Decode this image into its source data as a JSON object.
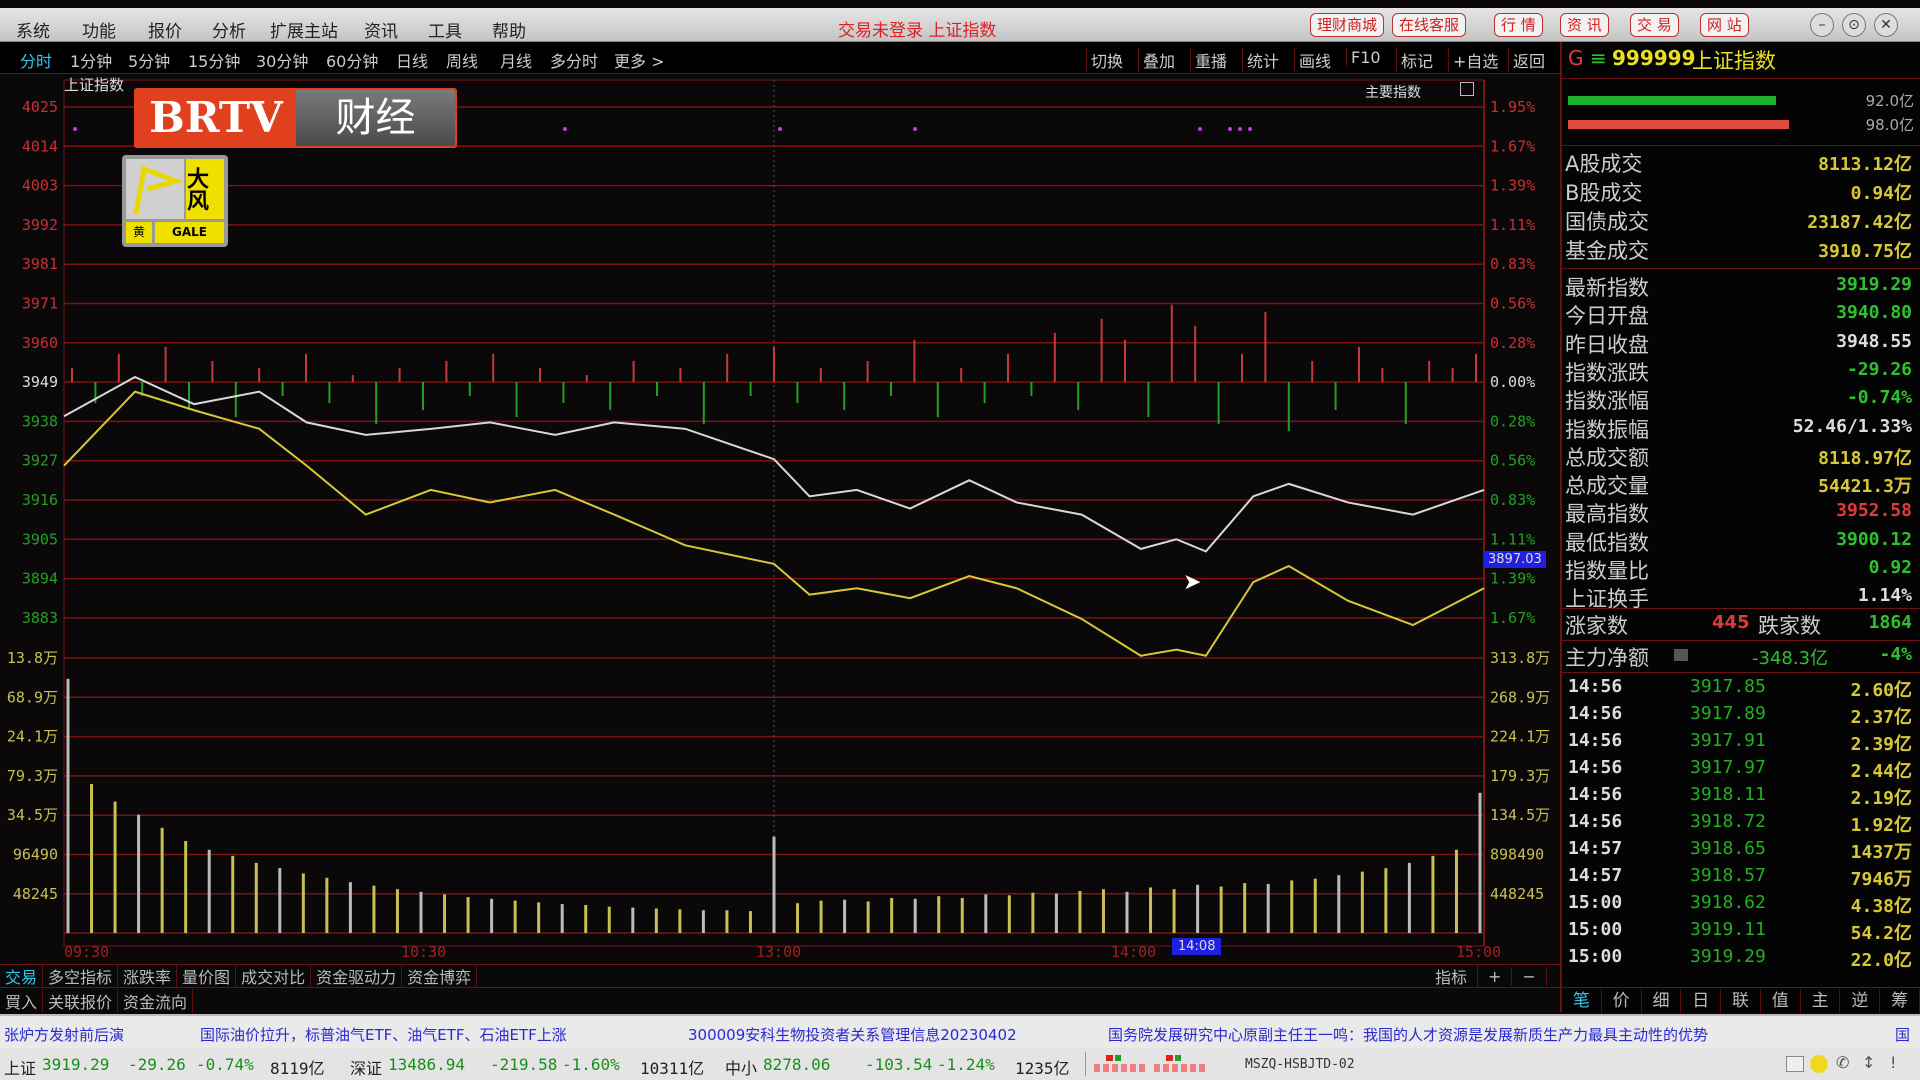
{
  "menu": [
    "系统",
    "功能",
    "报价",
    "分析",
    "扩展主站",
    "资讯",
    "工具",
    "帮助"
  ],
  "window_title": "交易未登录 上证指数",
  "title_buttons": [
    "理财商城",
    "在线客服",
    "行 情",
    "资 讯",
    "交 易",
    "网 站"
  ],
  "window_controls": [
    "–",
    "⊙",
    "✕"
  ],
  "periods": [
    "分时",
    "1分钟",
    "5分钟",
    "15分钟",
    "30分钟",
    "60分钟",
    "日线",
    "周线",
    "月线",
    "多分时",
    "更多 >"
  ],
  "tools": [
    "切换",
    "叠加",
    "重播",
    "统计",
    "画线",
    "F10",
    "标记",
    "+自选",
    "返回"
  ],
  "chart": {
    "index_label": "上证指数",
    "main_index_label": "主要指数",
    "logo": {
      "brand": "BRTV",
      "channel": "财经"
    },
    "warning": {
      "title": "大风",
      "level": "黄",
      "en": "GALE"
    },
    "cursor_price": "3897.03",
    "cursor_time": "14:08",
    "colors": {
      "grid": "#7a1414",
      "up": "#e03a3a",
      "down": "#22b022",
      "index": "#d8d8d8",
      "avg": "#d8c838",
      "vol": "#c8c050"
    }
  },
  "chart_data": {
    "type": "line",
    "price_ticks": [
      "4025",
      "4014",
      "4003",
      "3992",
      "3981",
      "3971",
      "3960",
      "3949",
      "3938",
      "3927",
      "3916",
      "3905",
      "3894",
      "3883"
    ],
    "pct_ticks": [
      "1.95%",
      "1.67%",
      "1.39%",
      "1.11%",
      "0.83%",
      "0.56%",
      "0.28%",
      "0.00%",
      "0.28%",
      "0.56%",
      "0.83%",
      "1.11%",
      "1.39%",
      "1.67%"
    ],
    "vol_ticks_left": [
      "13.8万",
      "68.9万",
      "24.1万",
      "79.3万",
      "34.5万",
      "96490",
      "48245"
    ],
    "vol_ticks_right": [
      "313.8万",
      "268.9万",
      "224.1万",
      "179.3万",
      "134.5万",
      "898490",
      "448245"
    ],
    "time_ticks": [
      "09:30",
      "10:30",
      "13:00",
      "14:00",
      "15:00"
    ],
    "prev_close": 3949,
    "x": [
      "09:30",
      "09:42",
      "09:52",
      "10:03",
      "10:11",
      "10:21",
      "10:32",
      "10:42",
      "10:53",
      "11:03",
      "11:15",
      "11:30",
      "13:06",
      "13:14",
      "13:23",
      "13:33",
      "13:41",
      "13:52",
      "14:02",
      "14:08",
      "14:13",
      "14:21",
      "14:27",
      "14:37",
      "14:48",
      "15:00"
    ],
    "series": [
      {
        "values": [
          3939.4,
          3950.4,
          3942.8,
          3946.3,
          3937.7,
          3934.2,
          3935.9,
          3937.7,
          3934.2,
          3937.7,
          3935.9,
          3927.4,
          3917.0,
          3918.8,
          3913.6,
          3921.5,
          3915.3,
          3911.9,
          3902.3,
          3905.0,
          3901.6,
          3917.0,
          3920.5,
          3915.3,
          3911.9,
          3918.8
        ]
      },
      {
        "values": [
          3925.6,
          3946.3,
          3941.1,
          3935.9,
          3925.6,
          3911.9,
          3918.8,
          3915.3,
          3918.8,
          3911.9,
          3903.3,
          3898.1,
          3889.5,
          3891.3,
          3888.5,
          3894.7,
          3891.3,
          3882.7,
          3872.4,
          3874.1,
          3872.4,
          3893.0,
          3897.5,
          3887.8,
          3881.0,
          3891.3
        ]
      }
    ],
    "breadth_pct": [
      0.1,
      -0.15,
      0.2,
      -0.1,
      0.25,
      -0.2,
      0.15,
      -0.25,
      0.1,
      -0.1,
      0.2,
      -0.15,
      0.05,
      -0.3,
      0.1,
      -0.2,
      0.15,
      -0.1,
      0.2,
      -0.25,
      0.1,
      -0.15,
      0.05,
      -0.2,
      0.15,
      -0.1,
      0.1,
      -0.3,
      0.2,
      -0.1,
      0.25,
      -0.15,
      0.1,
      -0.2,
      0.15,
      -0.1,
      0.3,
      -0.25,
      0.1,
      -0.15,
      0.2,
      -0.1,
      0.35,
      -0.2,
      0.45,
      0.3,
      -0.25,
      0.55,
      0.4,
      -0.3,
      0.2,
      0.5,
      -0.35,
      0.15,
      -0.2,
      0.25,
      0.1,
      -0.3,
      0.15,
      0.1,
      0.2
    ],
    "volume_wan": [
      290,
      170,
      150,
      135,
      120,
      105,
      95,
      88,
      80,
      74,
      68,
      63,
      58,
      54,
      50,
      47,
      44,
      41,
      39,
      37,
      35,
      33,
      32,
      30,
      29,
      28,
      27,
      26,
      26,
      25,
      110,
      34,
      37,
      38,
      36,
      40,
      39,
      42,
      40,
      44,
      43,
      46,
      45,
      48,
      50,
      47,
      52,
      50,
      55,
      53,
      57,
      56,
      60,
      62,
      66,
      70,
      74,
      80,
      88,
      95,
      160
    ]
  },
  "right_panel": {
    "header": {
      "flag": "G",
      "menu": "≡",
      "code": "999999",
      "name": "上证指数"
    },
    "bars": [
      {
        "value": "92.0亿",
        "fill": 0.65
      },
      {
        "value": "98.0亿",
        "fill": 0.69
      }
    ],
    "turnover": [
      {
        "label": "A股成交",
        "value": "8113.12亿"
      },
      {
        "label": "B股成交",
        "value": "0.94亿"
      },
      {
        "label": "国债成交",
        "value": "23187.42亿"
      },
      {
        "label": "基金成交",
        "value": "3910.75亿"
      }
    ],
    "stats": [
      {
        "label": "最新指数",
        "value": "3919.29",
        "color": "#2fc02f"
      },
      {
        "label": "今日开盘",
        "value": "3940.80",
        "color": "#2fc02f"
      },
      {
        "label": "昨日收盘",
        "value": "3948.55",
        "color": "#dddddd"
      },
      {
        "label": "指数涨跌",
        "value": "-29.26",
        "color": "#2fc02f"
      },
      {
        "label": "指数涨幅",
        "value": "-0.74%",
        "color": "#2fc02f"
      },
      {
        "label": "指数振幅",
        "value": "52.46/1.33%",
        "color": "#dddddd"
      },
      {
        "label": "总成交额",
        "value": "8118.97亿",
        "color": "#d8c838"
      },
      {
        "label": "总成交量",
        "value": "54421.3万",
        "color": "#d8c838"
      },
      {
        "label": "最高指数",
        "value": "3952.58",
        "color": "#e03a3a"
      },
      {
        "label": "最低指数",
        "value": "3900.12",
        "color": "#2fc02f"
      },
      {
        "label": "指数量比",
        "value": "0.92",
        "color": "#2fc02f"
      },
      {
        "label": "上证换手",
        "value": "1.14%",
        "color": "#dddddd"
      }
    ],
    "breadth": {
      "up_label": "涨家数",
      "up": "445",
      "down_label": "跌家数",
      "down": "1864"
    },
    "main_force": {
      "label": "主力净额",
      "value": "-348.3亿",
      "pct": "-4%"
    },
    "ticks": [
      {
        "time": "14:56",
        "price": "3917.85",
        "amount": "2.60亿"
      },
      {
        "time": "14:56",
        "price": "3917.89",
        "amount": "2.37亿"
      },
      {
        "time": "14:56",
        "price": "3917.91",
        "amount": "2.39亿"
      },
      {
        "time": "14:56",
        "price": "3917.97",
        "amount": "2.44亿"
      },
      {
        "time": "14:56",
        "price": "3918.11",
        "amount": "2.19亿"
      },
      {
        "time": "14:56",
        "price": "3918.72",
        "amount": "1.92亿"
      },
      {
        "time": "14:57",
        "price": "3918.65",
        "amount": "1437万"
      },
      {
        "time": "14:57",
        "price": "3918.57",
        "amount": "7946万"
      },
      {
        "time": "15:00",
        "price": "3918.62",
        "amount": "4.38亿"
      },
      {
        "time": "15:00",
        "price": "3919.11",
        "amount": "54.2亿"
      },
      {
        "time": "15:00",
        "price": "3919.29",
        "amount": "22.0亿"
      }
    ],
    "tabs": [
      "笔",
      "价",
      "细",
      "日",
      "联",
      "值",
      "主",
      "逆",
      "筹"
    ]
  },
  "bottom_tabs": {
    "row1": [
      "交易",
      "多空指标",
      "涨跌率",
      "量价图",
      "成交对比",
      "资金驱动力",
      "资金博弈"
    ],
    "row2": [
      "買入",
      "关联报价",
      "资金流向"
    ],
    "right": [
      "指标",
      "+",
      "−"
    ]
  },
  "news": [
    "张炉方发射前后演",
    "国际油价拉升，标普油气ETF、油气ETF、石油ETF上涨",
    "300009安科生物投资者关系管理信息20230402",
    "国务院发展研究中心原副主任王一鸣：我国的人才资源是发展新质生产力最具主动性的优势",
    "国"
  ],
  "status": {
    "sh": {
      "name": "上证",
      "price": "3919.29",
      "chg": "-29.26",
      "pct": "-0.74%",
      "amt": "8119亿"
    },
    "sz": {
      "name": "深证",
      "price": "13486.94",
      "chg": "-219.58",
      "pct": "-1.60%",
      "amt": "10311亿"
    },
    "zx": {
      "name": "中小",
      "price": "8278.06",
      "chg": "-103.54",
      "pct": "-1.24%",
      "amt": "1235亿"
    },
    "server": "MSZQ-HSBJTD-02"
  }
}
